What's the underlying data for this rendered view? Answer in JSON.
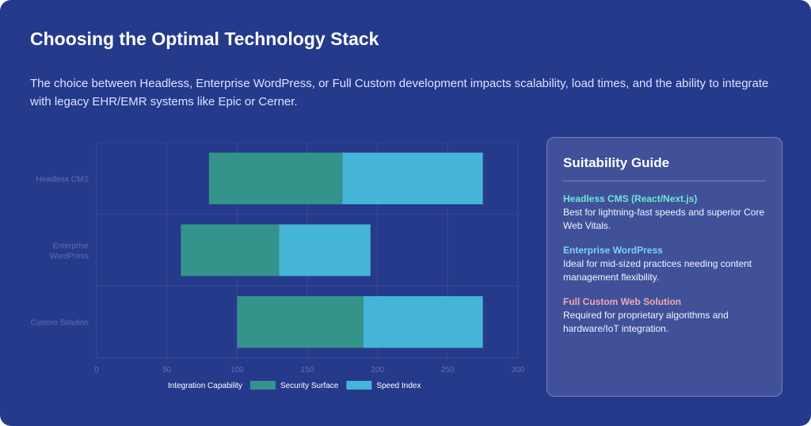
{
  "title": "Choosing the Optimal Technology Stack",
  "description": "The choice between Headless, Enterprise WordPress, or Full Custom development impacts scalability, load times, and the ability to integrate with legacy EHR/EMR systems like Epic or Cerner.",
  "guide": {
    "title": "Suitability Guide",
    "items": [
      {
        "name": "Headless CMS (React/Next.js)",
        "text": "Best for lightning-fast speeds and superior Core Web Vitals.",
        "color": "#6ee7d2"
      },
      {
        "name": "Enterprise WordPress",
        "text": "Ideal for mid-sized practices needing content management flexibility.",
        "color": "#7dd3f0"
      },
      {
        "name": "Full Custom Web Solution",
        "text": "Required for proprietary algorithms and hardware/IoT integration.",
        "color": "#f4a7b0"
      }
    ]
  },
  "chart_data": {
    "type": "bar",
    "orientation": "horizontal",
    "stacked": true,
    "categories": [
      "Headless CMS",
      "Enterprise WordPress",
      "Custom Solution"
    ],
    "category_lines": [
      [
        "Headless CMS"
      ],
      [
        "Enterprise",
        "WordPress"
      ],
      [
        "Custom Solution"
      ]
    ],
    "series": [
      {
        "name": "Integration Capability",
        "values": [
          80,
          60,
          100
        ],
        "color": "transparent"
      },
      {
        "name": "Security Surface",
        "values": [
          95,
          70,
          90
        ],
        "color": "#34938a"
      },
      {
        "name": "Speed Index",
        "values": [
          100,
          65,
          85
        ],
        "color": "#45b5d8"
      }
    ],
    "xlim": [
      0,
      300
    ],
    "xticks": [
      0,
      50,
      100,
      150,
      200,
      250,
      300
    ],
    "grid": true,
    "legend": "bottom"
  }
}
